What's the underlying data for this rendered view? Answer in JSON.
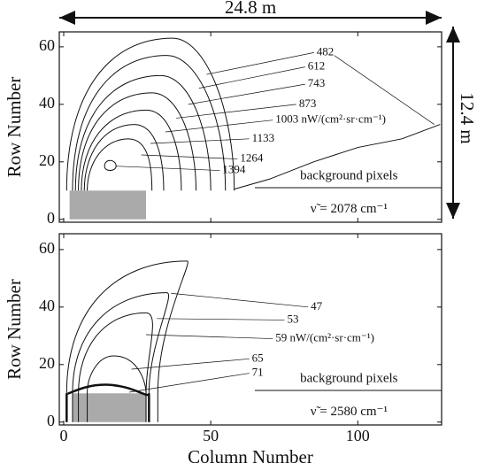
{
  "chart_data": [
    {
      "type": "contour",
      "ylabel": "Row Number",
      "xlim": [
        -1.5,
        128.5
      ],
      "ylim": [
        -1,
        65.2
      ],
      "xticks": [
        0,
        50,
        100
      ],
      "yticks": [
        0,
        20,
        40,
        60
      ],
      "levels": [
        482,
        612,
        743,
        873,
        {
          "value": 1003,
          "label": "1003 nW/(cm²·sr·cm⁻¹)"
        },
        1133,
        1264,
        1394
      ],
      "annotations": [
        "background pixels",
        "ν̃ = 2078 cm⁻¹"
      ],
      "width_label": "24.8 m",
      "height_label": "12.4 m"
    },
    {
      "type": "contour",
      "ylabel": "Row Number",
      "xlabel": "Column Number",
      "xlim": [
        -1.5,
        128.5
      ],
      "ylim": [
        -1,
        65.5
      ],
      "xticks": [
        0,
        50,
        100
      ],
      "yticks": [
        0,
        20,
        40,
        60
      ],
      "levels": [
        47,
        53,
        {
          "value": 59,
          "label": "59 nW/(cm²·sr·cm⁻¹)"
        },
        65,
        71
      ],
      "annotations": [
        "background pixels",
        "ν̃ = 2580 cm⁻¹"
      ]
    }
  ]
}
